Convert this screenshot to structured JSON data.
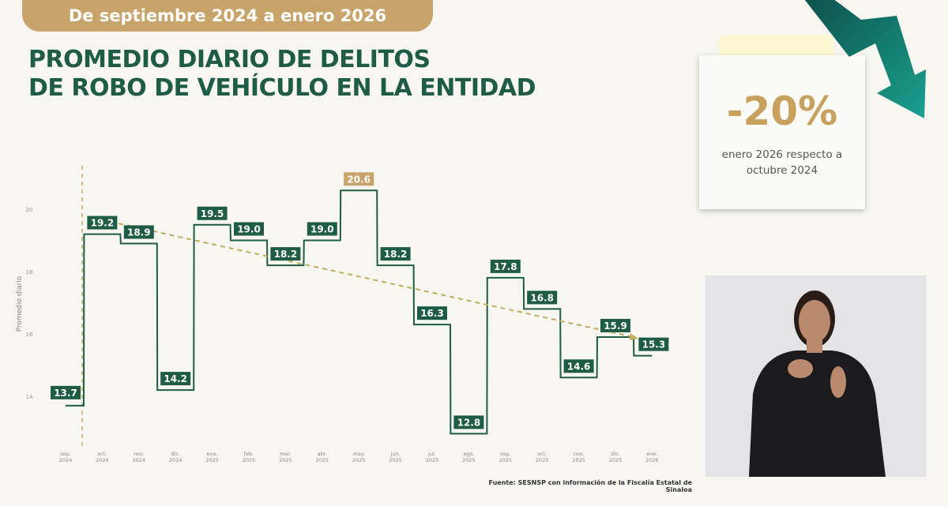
{
  "header": {
    "period": "De septiembre 2024 a enero 2026",
    "title_line1": "PROMEDIO DIARIO DE DELITOS",
    "title_line2": "DE ROBO DE VEHÍCULO EN LA ENTIDAD"
  },
  "callout": {
    "value": "-20%",
    "text_line1": "enero 2026 respecto a",
    "text_line2": "octubre 2024",
    "icon": "down-trend-arrow-icon",
    "arrow_color": "#137a6c"
  },
  "source": "Fuente: SESNSP con información de la Fiscalía Estatal de Sinaloa",
  "colors": {
    "line": "#1f5c45",
    "highlight": "#c9a46a",
    "trend": "#c2ae5e"
  },
  "chart_data": {
    "type": "line",
    "style": "step",
    "ylabel": "Promedio diario",
    "xlabel": "",
    "yticks": [
      14,
      16,
      18,
      20
    ],
    "ylim": [
      13,
      21.5
    ],
    "grid": false,
    "categories": [
      [
        "sep.",
        "2024"
      ],
      [
        "oct.",
        "2024"
      ],
      [
        "nov.",
        "2024"
      ],
      [
        "dic.",
        "2024"
      ],
      [
        "ene.",
        "2025"
      ],
      [
        "feb.",
        "2025"
      ],
      [
        "mar.",
        "2025"
      ],
      [
        "abr.",
        "2025"
      ],
      [
        "may.",
        "2025"
      ],
      [
        "jun.",
        "2025"
      ],
      [
        "jul.",
        "2025"
      ],
      [
        "ago.",
        "2025"
      ],
      [
        "sep.",
        "2025"
      ],
      [
        "oct.",
        "2025"
      ],
      [
        "nov.",
        "2025"
      ],
      [
        "dic.",
        "2025"
      ],
      [
        "ene.",
        "2026"
      ]
    ],
    "values": [
      13.7,
      19.2,
      18.9,
      14.2,
      19.5,
      19.0,
      18.2,
      19.0,
      20.6,
      18.2,
      16.3,
      12.8,
      17.8,
      16.8,
      14.6,
      15.9,
      15.3
    ],
    "labels": [
      "13.7",
      "19.2",
      "18.9",
      "14.2",
      "19.5",
      "19.0",
      "18.2",
      "19.0",
      "20.6",
      "18.2",
      "16.3",
      "12.8",
      "17.8",
      "16.8",
      "14.6",
      "15.9",
      "15.3"
    ],
    "highlight_index": 8,
    "trend": {
      "from": "oct. 2024",
      "to": "dic. 2025",
      "start": 19.6,
      "end": 15.9
    }
  }
}
